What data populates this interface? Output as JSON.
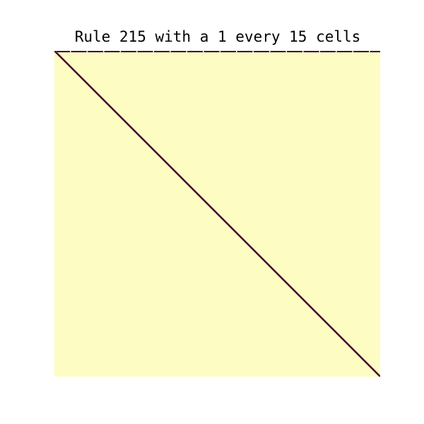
{
  "title": "Rule 215 with a 1 every 15 cells",
  "automaton": {
    "rule": 215,
    "initial_condition": "a 1 every 15 cells",
    "colors": {
      "background": "#fcfcc3",
      "top_row_on": "#3a0a2a",
      "diagonal_dark": "#1a0a30",
      "diagonal_mid": "#8c1a3a",
      "diagonal_light": "#e04040"
    }
  }
}
